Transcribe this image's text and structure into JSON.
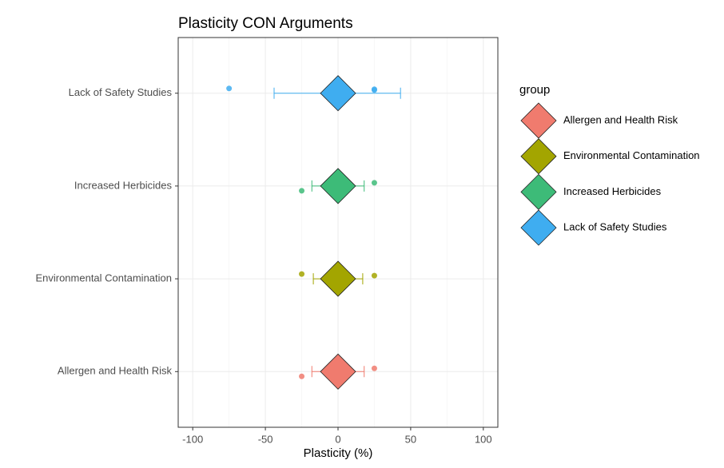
{
  "chart_data": {
    "type": "dot-errorbar",
    "title": "Plasticity CON Arguments",
    "x_label": "Plasticity (%)",
    "xlim": [
      -110,
      110
    ],
    "xticks": [
      -100,
      -50,
      0,
      50,
      100
    ],
    "grid": true,
    "legend_title": "group",
    "legend_position": "right",
    "series": [
      {
        "name": "Allergen and Health Risk",
        "color": "#F07B6E",
        "mean": 0,
        "ci_low": -18,
        "ci_high": 18,
        "points": [
          -25,
          25
        ]
      },
      {
        "name": "Environmental Contamination",
        "color": "#A3A500",
        "mean": 0,
        "ci_low": -17,
        "ci_high": 17,
        "points": [
          -25,
          25
        ]
      },
      {
        "name": "Increased Herbicides",
        "color": "#3DBB78",
        "mean": 0,
        "ci_low": -18,
        "ci_high": 18,
        "points": [
          -25,
          25
        ]
      },
      {
        "name": "Lack of Safety Studies",
        "color": "#3FADF0",
        "mean": 0,
        "ci_low": -44,
        "ci_high": 43,
        "points": [
          -75,
          25,
          25
        ]
      }
    ]
  }
}
